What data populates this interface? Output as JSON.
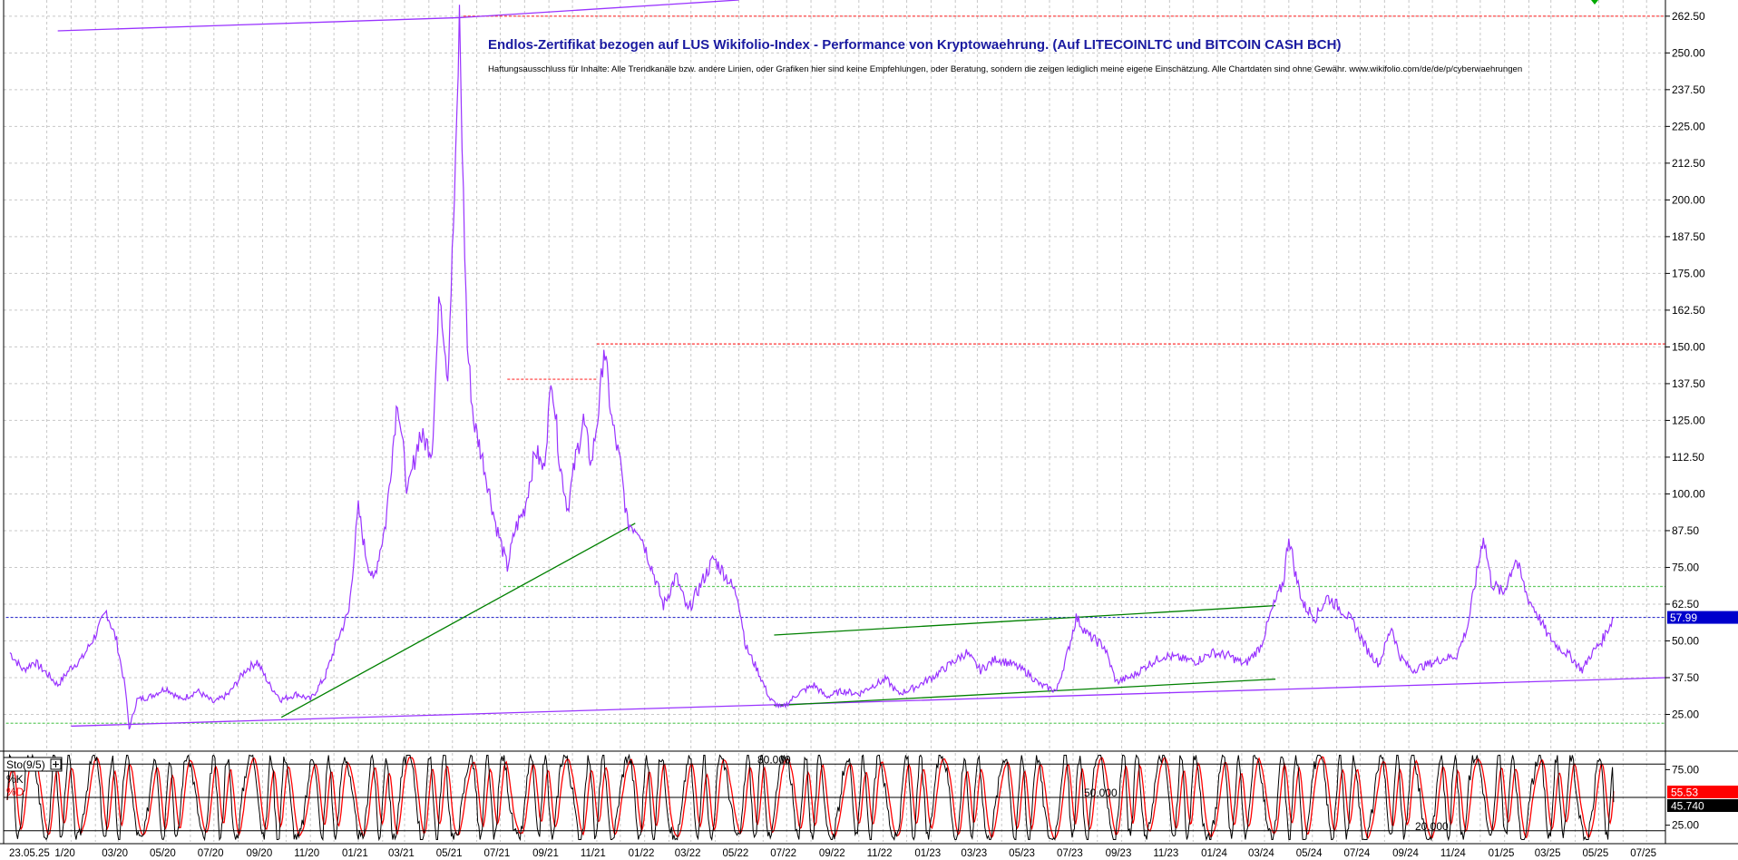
{
  "chart_data": [
    {
      "type": "line",
      "title": "Endlos-Zertifikat bezogen auf LUS Wikifolio-Index - Performance von Kryptowaehrung. (Auf LITECOINLTC und BITCOIN CASH BCH)",
      "subtitle": "Haftungsausschluss für Inhalte: Alle Trendkanäle bzw. andere Linien, oder Grafiken hier sind keine Empfehlungen, oder Beratung, sondern die zeigen lediglich meine eigene Einschätzung. Alle Chartdaten sind ohne Gewähr.  www.wikifolio.com/de/de/p/cyberwaehrungen",
      "xlabel": "",
      "ylabel": "",
      "y_axis_side": "right",
      "ylim": [
        12.5,
        268
      ],
      "y_ticks": [
        "262.50",
        "250.00",
        "237.50",
        "225.00",
        "212.50",
        "200.00",
        "187.50",
        "175.00",
        "162.50",
        "150.00",
        "137.50",
        "125.00",
        "112.50",
        "100.00",
        "87.50",
        "75.00",
        "62.50",
        "50.00",
        "37.50",
        "25.00"
      ],
      "x_ticks": [
        "23.05.25",
        "1/20",
        "03/20",
        "05/20",
        "07/20",
        "09/20",
        "11/20",
        "01/21",
        "03/21",
        "05/21",
        "07/21",
        "09/21",
        "11/21",
        "01/22",
        "03/22",
        "05/22",
        "07/22",
        "09/22",
        "11/22",
        "01/23",
        "03/23",
        "05/23",
        "07/23",
        "09/23",
        "11/23",
        "01/24",
        "03/24",
        "05/24",
        "07/24",
        "09/24",
        "11/24",
        "01/25",
        "03/25",
        "05/25",
        "07/25"
      ],
      "grid": true,
      "last_value_label": "57.99",
      "series": [
        {
          "color": "#9933ff",
          "points": [
            [
              "2019-10-15",
              46
            ],
            [
              "2019-11-01",
              40
            ],
            [
              "2019-11-15",
              43
            ],
            [
              "2019-12-01",
              39
            ],
            [
              "2019-12-15",
              35
            ],
            [
              "2020-01-01",
              41
            ],
            [
              "2020-01-15",
              44
            ],
            [
              "2020-02-01",
              52
            ],
            [
              "2020-02-15",
              60
            ],
            [
              "2020-02-28",
              50
            ],
            [
              "2020-03-10",
              34
            ],
            [
              "2020-03-15",
              20
            ],
            [
              "2020-03-25",
              30
            ],
            [
              "2020-04-10",
              31
            ],
            [
              "2020-05-01",
              34
            ],
            [
              "2020-05-20",
              30
            ],
            [
              "2020-06-10",
              33
            ],
            [
              "2020-07-01",
              29
            ],
            [
              "2020-07-20",
              32
            ],
            [
              "2020-08-10",
              40
            ],
            [
              "2020-08-25",
              43
            ],
            [
              "2020-09-10",
              35
            ],
            [
              "2020-09-25",
              30
            ],
            [
              "2020-10-15",
              32
            ],
            [
              "2020-11-01",
              30
            ],
            [
              "2020-11-20",
              38
            ],
            [
              "2020-12-05",
              50
            ],
            [
              "2020-12-20",
              60
            ],
            [
              "2021-01-01",
              95
            ],
            [
              "2021-01-10",
              80
            ],
            [
              "2021-01-20",
              70
            ],
            [
              "2021-02-05",
              90
            ],
            [
              "2021-02-20",
              133
            ],
            [
              "2021-03-05",
              100
            ],
            [
              "2021-03-20",
              120
            ],
            [
              "2021-04-05",
              115
            ],
            [
              "2021-04-15",
              170
            ],
            [
              "2021-04-25",
              140
            ],
            [
              "2021-05-05",
              210
            ],
            [
              "2021-05-10",
              262
            ],
            [
              "2021-05-15",
              200
            ],
            [
              "2021-05-20",
              150
            ],
            [
              "2021-05-28",
              125
            ],
            [
              "2021-06-10",
              110
            ],
            [
              "2021-06-25",
              90
            ],
            [
              "2021-07-10",
              75
            ],
            [
              "2021-07-20",
              88
            ],
            [
              "2021-08-01",
              95
            ],
            [
              "2021-08-15",
              115
            ],
            [
              "2021-08-25",
              108
            ],
            [
              "2021-09-05",
              140
            ],
            [
              "2021-09-15",
              110
            ],
            [
              "2021-09-25",
              95
            ],
            [
              "2021-10-05",
              112
            ],
            [
              "2021-10-15",
              125
            ],
            [
              "2021-10-25",
              110
            ],
            [
              "2021-11-05",
              132
            ],
            [
              "2021-11-10",
              151
            ],
            [
              "2021-11-20",
              125
            ],
            [
              "2021-12-01",
              110
            ],
            [
              "2021-12-10",
              90
            ],
            [
              "2021-12-25",
              88
            ],
            [
              "2022-01-10",
              75
            ],
            [
              "2022-01-25",
              62
            ],
            [
              "2022-02-10",
              72
            ],
            [
              "2022-02-25",
              60
            ],
            [
              "2022-03-15",
              70
            ],
            [
              "2022-03-30",
              78
            ],
            [
              "2022-04-15",
              72
            ],
            [
              "2022-04-30",
              65
            ],
            [
              "2022-05-10",
              48
            ],
            [
              "2022-05-25",
              40
            ],
            [
              "2022-06-10",
              30
            ],
            [
              "2022-06-25",
              27
            ],
            [
              "2022-07-15",
              32
            ],
            [
              "2022-08-05",
              35
            ],
            [
              "2022-08-20",
              31
            ],
            [
              "2022-09-10",
              33
            ],
            [
              "2022-10-01",
              32
            ],
            [
              "2022-10-20",
              35
            ],
            [
              "2022-11-05",
              37
            ],
            [
              "2022-11-20",
              32
            ],
            [
              "2022-12-10",
              34
            ],
            [
              "2023-01-05",
              38
            ],
            [
              "2023-01-25",
              42
            ],
            [
              "2023-02-15",
              46
            ],
            [
              "2023-03-05",
              40
            ],
            [
              "2023-03-25",
              44
            ],
            [
              "2023-04-15",
              42
            ],
            [
              "2023-05-05",
              39
            ],
            [
              "2023-05-20",
              35
            ],
            [
              "2023-06-10",
              33
            ],
            [
              "2023-06-25",
              47
            ],
            [
              "2023-07-05",
              58
            ],
            [
              "2023-07-20",
              52
            ],
            [
              "2023-08-10",
              48
            ],
            [
              "2023-08-25",
              36
            ],
            [
              "2023-09-15",
              38
            ],
            [
              "2023-10-05",
              42
            ],
            [
              "2023-10-25",
              45
            ],
            [
              "2023-11-15",
              44
            ],
            [
              "2023-12-05",
              43
            ],
            [
              "2023-12-25",
              46
            ],
            [
              "2024-01-15",
              45
            ],
            [
              "2024-02-05",
              42
            ],
            [
              "2024-02-25",
              48
            ],
            [
              "2024-03-10",
              60
            ],
            [
              "2024-03-25",
              70
            ],
            [
              "2024-04-01",
              86
            ],
            [
              "2024-04-10",
              72
            ],
            [
              "2024-04-20",
              62
            ],
            [
              "2024-05-05",
              58
            ],
            [
              "2024-05-20",
              65
            ],
            [
              "2024-06-10",
              60
            ],
            [
              "2024-06-25",
              55
            ],
            [
              "2024-07-10",
              47
            ],
            [
              "2024-07-25",
              42
            ],
            [
              "2024-08-10",
              55
            ],
            [
              "2024-08-20",
              45
            ],
            [
              "2024-09-05",
              40
            ],
            [
              "2024-09-25",
              42
            ],
            [
              "2024-10-15",
              44
            ],
            [
              "2024-11-01",
              45
            ],
            [
              "2024-11-15",
              55
            ],
            [
              "2024-11-28",
              75
            ],
            [
              "2024-12-05",
              86
            ],
            [
              "2024-12-15",
              70
            ],
            [
              "2024-12-30",
              66
            ],
            [
              "2025-01-15",
              78
            ],
            [
              "2025-01-30",
              65
            ],
            [
              "2025-02-10",
              60
            ],
            [
              "2025-02-25",
              52
            ],
            [
              "2025-03-10",
              48
            ],
            [
              "2025-03-25",
              45
            ],
            [
              "2025-04-10",
              40
            ],
            [
              "2025-04-20",
              45
            ],
            [
              "2025-05-05",
              50
            ],
            [
              "2025-05-20",
              57.99
            ]
          ]
        }
      ],
      "trend_lines": [
        {
          "color": "#9933ff",
          "from": [
            "2019-12-15",
            257.5
          ],
          "to": [
            "2021-05-10",
            262
          ]
        },
        {
          "color": "#9933ff",
          "from": [
            "2021-05-10",
            262
          ],
          "to": [
            "2022-05-01",
            268
          ]
        },
        {
          "color": "#9933ff",
          "from": [
            "2020-01-01",
            21
          ],
          "to": [
            "2025-07-25",
            37.5
          ]
        },
        {
          "color": "#008000",
          "from": [
            "2020-09-25",
            24
          ],
          "to": [
            "2021-12-20",
            90
          ]
        },
        {
          "color": "#008000",
          "from": [
            "2022-06-15",
            52
          ],
          "to": [
            "2024-03-15",
            62
          ]
        },
        {
          "color": "#008000",
          "from": [
            "2022-06-15",
            28
          ],
          "to": [
            "2024-03-15",
            37
          ]
        }
      ],
      "h_levels": [
        {
          "y": 262.5,
          "color": "#ff3333",
          "from": "2021-05-15",
          "to": "2025-07-25"
        },
        {
          "y": 151,
          "color": "#ff3333",
          "from": "2021-11-01",
          "to": "2025-07-25"
        },
        {
          "y": 139,
          "color": "#ff3333",
          "from": "2021-07-10",
          "to": "2021-11-01"
        },
        {
          "y": 68.5,
          "color": "#66cc66",
          "from": "2021-07-05",
          "to": "2025-07-25"
        },
        {
          "y": 22,
          "color": "#66cc66",
          "from": "2019-10-10",
          "to": "2025-07-25"
        },
        {
          "y": 57.99,
          "color": "#3333cc",
          "from": "2019-10-10",
          "to": "2025-07-25"
        }
      ],
      "x_range": [
        "2019-10-07",
        "2025-07-25"
      ]
    },
    {
      "type": "line",
      "title": "",
      "indicator_name": "Sto(9/5)",
      "ylim": [
        10,
        90
      ],
      "y_ticks": [
        "75.00",
        "25.00"
      ],
      "levels": [
        {
          "y": 80,
          "label": "80.000"
        },
        {
          "y": 50,
          "label": "50.000"
        },
        {
          "y": 20,
          "label": "20.000"
        }
      ],
      "series": [
        {
          "name": "%K",
          "color": "#000000",
          "last_value": "45.740"
        },
        {
          "name": "%D",
          "color": "#ff0000",
          "last_value": "55.53"
        }
      ],
      "cycles_per_year": 14
    }
  ],
  "colors": {
    "grid": "#c8c8c8",
    "price_badge": "#0000cc",
    "d_badge": "#ff0000",
    "k_badge": "#000000"
  }
}
